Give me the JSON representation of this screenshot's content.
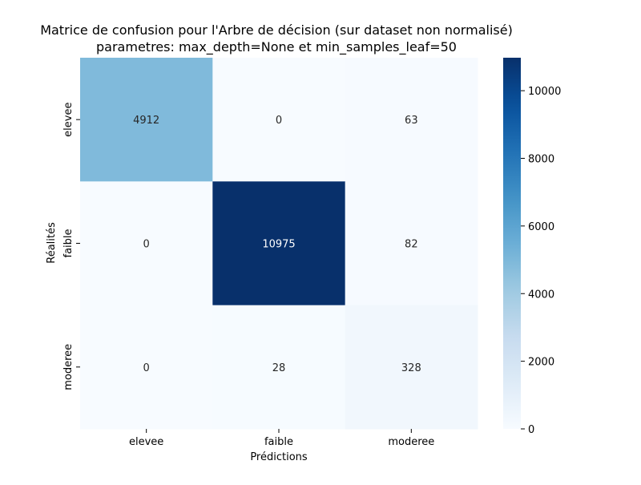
{
  "chart_data": {
    "type": "heatmap",
    "title": "Matrice de confusion pour l'Arbre de décision (sur dataset non normalisé)",
    "subtitle": "parametres: max_depth=None et min_samples_leaf=50",
    "xlabel": "Prédictions",
    "ylabel": "Réalités",
    "x_categories": [
      "elevee",
      "faible",
      "moderee"
    ],
    "y_categories": [
      "elevee",
      "faible",
      "moderee"
    ],
    "values": [
      [
        4912,
        0,
        63
      ],
      [
        0,
        10975,
        82
      ],
      [
        0,
        28,
        328
      ]
    ],
    "colormap": "Blues",
    "colorbar": {
      "range": [
        0,
        10975
      ],
      "ticks": [
        0,
        2000,
        4000,
        6000,
        8000,
        10000
      ]
    },
    "colors": {
      "low": "#f7fbff",
      "high": "#08306b"
    }
  }
}
